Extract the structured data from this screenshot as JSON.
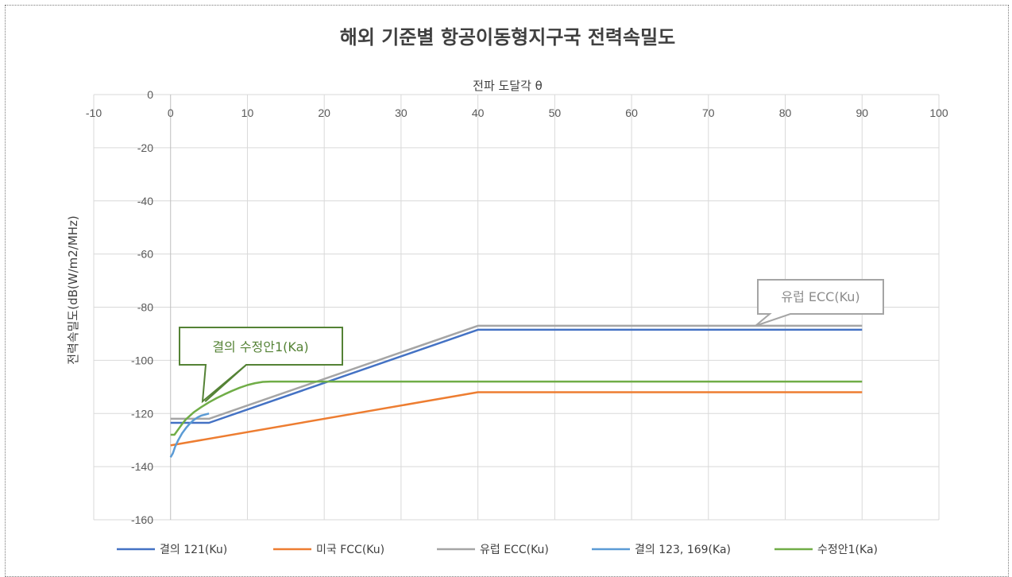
{
  "chart_data": {
    "type": "line",
    "title": "해외 기준별 항공이동형지구국 전력속밀도",
    "xlabel": "전파 도달각 θ",
    "ylabel": "전력속밀도(dB(W/m2/MHz)",
    "xlim": [
      -10,
      100
    ],
    "ylim": [
      -160,
      0
    ],
    "x_ticks": [
      "-10",
      "0",
      "10",
      "20",
      "30",
      "40",
      "50",
      "60",
      "70",
      "80",
      "90",
      "100"
    ],
    "y_ticks": [
      "0",
      "-20",
      "-40",
      "-60",
      "-80",
      "-100",
      "-120",
      "-140",
      "-160"
    ],
    "grid": true,
    "legend_position": "bottom",
    "series": [
      {
        "name": "결의 121(Ku)",
        "color": "#4472c4",
        "points": [
          [
            0,
            -123.5
          ],
          [
            5,
            -123.5
          ],
          [
            40,
            -88.5
          ],
          [
            90,
            -88.5
          ]
        ]
      },
      {
        "name": "미국 FCC(Ku)",
        "color": "#ed7d31",
        "points": [
          [
            0,
            -132
          ],
          [
            40,
            -112
          ],
          [
            90,
            -112
          ]
        ]
      },
      {
        "name": "유럽 ECC(Ku)",
        "color": "#a5a5a5",
        "points": [
          [
            0,
            -122
          ],
          [
            5,
            -122
          ],
          [
            40,
            -87
          ],
          [
            90,
            -87
          ]
        ]
      },
      {
        "name": "결의 123, 169(Ka)",
        "color": "#5b9bd5",
        "points": [
          [
            0,
            -136.5
          ],
          [
            0.3,
            -135
          ],
          [
            0.6,
            -132.5
          ],
          [
            1,
            -130
          ],
          [
            1.5,
            -127.5
          ],
          [
            2,
            -125.5
          ],
          [
            2.5,
            -123.8
          ],
          [
            3,
            -122.5
          ],
          [
            3.5,
            -121.5
          ],
          [
            4,
            -120.8
          ],
          [
            5,
            -120
          ]
        ]
      },
      {
        "name": "수정안1(Ka)",
        "color": "#70ad47",
        "points": [
          [
            0,
            -128
          ],
          [
            0.5,
            -128
          ],
          [
            1,
            -126
          ],
          [
            1.5,
            -124
          ],
          [
            2,
            -122.2
          ],
          [
            3,
            -119.6
          ],
          [
            4,
            -117.6
          ],
          [
            5,
            -115.8
          ],
          [
            6,
            -114.2
          ],
          [
            7,
            -112.8
          ],
          [
            8,
            -111.5
          ],
          [
            9,
            -110.3
          ],
          [
            10,
            -109.3
          ],
          [
            11,
            -108.6
          ],
          [
            12,
            -108.1
          ],
          [
            13,
            -108
          ],
          [
            90,
            -108
          ]
        ]
      }
    ],
    "annotations": [
      {
        "text": "결의 수정안1(Ka)",
        "color": "#548235",
        "target_x": 4.5,
        "target_y": -115.5
      },
      {
        "text": "유럽 ECC(Ku)",
        "color": "#8c8c8c",
        "target_x": 76,
        "target_y": -87
      }
    ]
  }
}
